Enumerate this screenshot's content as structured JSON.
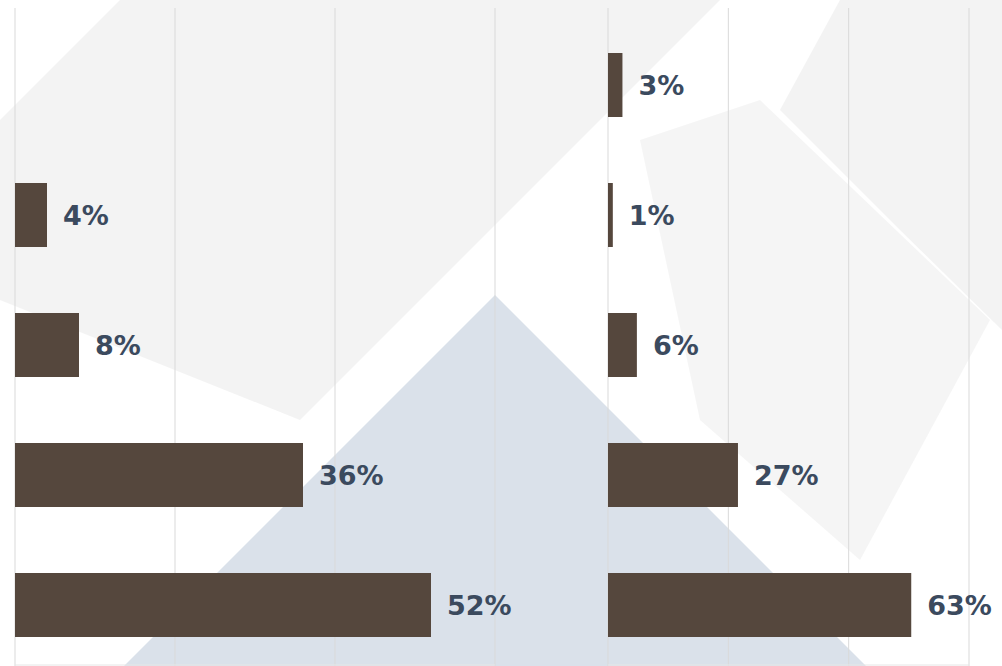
{
  "chart_data": [
    {
      "type": "bar",
      "orientation": "horizontal",
      "categories": [
        null,
        null,
        null,
        null
      ],
      "values": [
        4,
        8,
        36,
        52
      ],
      "value_labels": [
        "4%",
        "8%",
        "36%",
        "52%"
      ],
      "color": "#55473d",
      "xlim": [
        0,
        60
      ],
      "xticks": [
        0,
        20,
        40,
        60
      ],
      "grid": true,
      "data_labels": true,
      "tick_labels": false
    },
    {
      "type": "bar",
      "orientation": "horizontal",
      "categories": [
        null,
        null,
        null,
        null,
        null
      ],
      "values": [
        3,
        1,
        6,
        27,
        63
      ],
      "value_labels": [
        "3%",
        "1%",
        "6%",
        "27%",
        "63%"
      ],
      "color": "#55473d",
      "xlim": [
        0,
        75
      ],
      "xticks": [
        0,
        25,
        50,
        75
      ],
      "grid": true,
      "data_labels": true,
      "tick_labels": false
    }
  ]
}
